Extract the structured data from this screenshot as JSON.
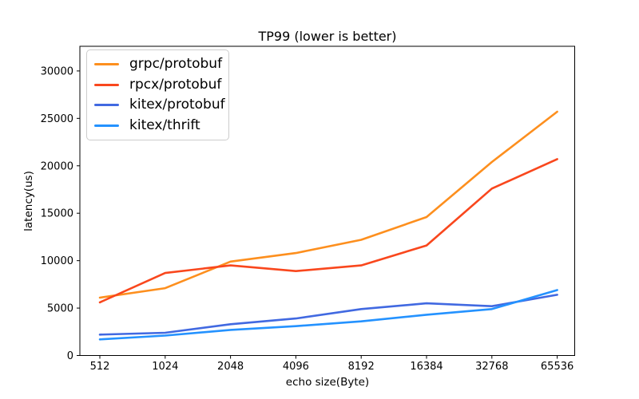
{
  "chart_data": {
    "type": "line",
    "title": "TP99 (lower is better)",
    "xlabel": "echo size(Byte)",
    "ylabel": "latency(us)",
    "categories": [
      "512",
      "1024",
      "2048",
      "4096",
      "8192",
      "16384",
      "32768",
      "65536"
    ],
    "series": [
      {
        "name": "grpc/protobuf",
        "color": "#fd8f1e",
        "values": [
          6100,
          7100,
          9900,
          10800,
          12200,
          14600,
          20400,
          25700
        ]
      },
      {
        "name": "rpcx/protobuf",
        "color": "#f9471d",
        "values": [
          5600,
          8700,
          9500,
          8900,
          9500,
          11600,
          17600,
          20700
        ]
      },
      {
        "name": "kitex/protobuf",
        "color": "#4169e1",
        "values": [
          2200,
          2400,
          3300,
          3900,
          4900,
          5500,
          5200,
          6400
        ]
      },
      {
        "name": "kitex/thrift",
        "color": "#2492ff",
        "values": [
          1700,
          2100,
          2700,
          3100,
          3600,
          4300,
          4900,
          6900
        ]
      }
    ],
    "yticks": [
      0,
      5000,
      10000,
      15000,
      20000,
      25000,
      30000
    ],
    "ylim": [
      0,
      32600
    ],
    "grid": false,
    "legend_position": "upper left",
    "axis_color": "#000000",
    "text_color": "#000000"
  }
}
